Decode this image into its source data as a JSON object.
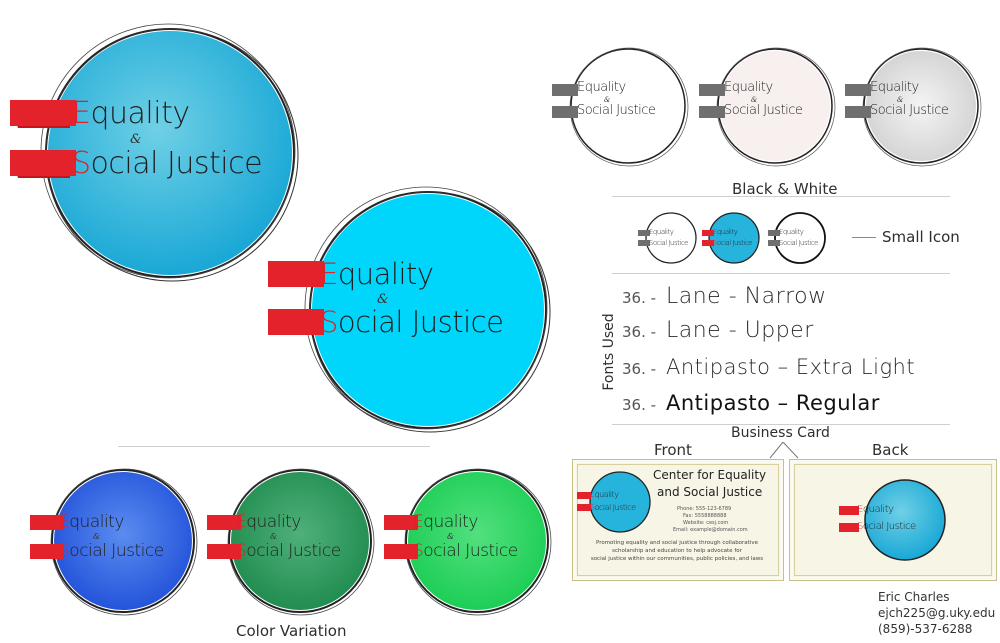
{
  "logo": {
    "letter_e": "E",
    "rest_e": "quality",
    "ampersand": "&",
    "letter_s": "S",
    "rest_s": "ocial Justice"
  },
  "colors": {
    "main_logo": "#26b4dc",
    "main_logo_light": "#00d8ff",
    "accent_red": "#e0202a",
    "variation_blue": "#1f5fe8",
    "variation_green": "#1e8a4e",
    "variation_bright_green": "#1fd45a",
    "bw_white": "#ffffff",
    "bw_pink": "#f7eeee",
    "bw_grey": "#dcdcdc"
  },
  "labels": {
    "black_white": "Black & White",
    "small_icon": "Small Icon",
    "fonts_used": "Fonts Used",
    "business_card": "Business Card",
    "front": "Front",
    "back": "Back",
    "color_variation": "Color Variation"
  },
  "fonts": [
    {
      "size": "36. -",
      "name": "Lane - Narrow"
    },
    {
      "size": "36. -",
      "name": "Lane - Upper"
    },
    {
      "size": "36. -",
      "name": "Antipasto – Extra Light"
    },
    {
      "size": "36. -",
      "name": "Antipasto – Regular"
    }
  ],
  "card": {
    "title_line1": "Center for Equality",
    "title_line2": "and Social Justice",
    "phone": "Phone: 555-123-6789",
    "fax": "Fax: 5558888888",
    "website": "Website: cesj.com",
    "email": "Email: example@domain.com",
    "mission_line1": "Promoting equality and social justice through collaborative",
    "mission_line2": "scholarship and education to help advocate for",
    "mission_line3": "social justice within our communities, public policies, and laws"
  },
  "author": {
    "name": "Eric Charles",
    "email": "ejch225@g.uky.edu",
    "phone": "(859)-537-6288"
  }
}
